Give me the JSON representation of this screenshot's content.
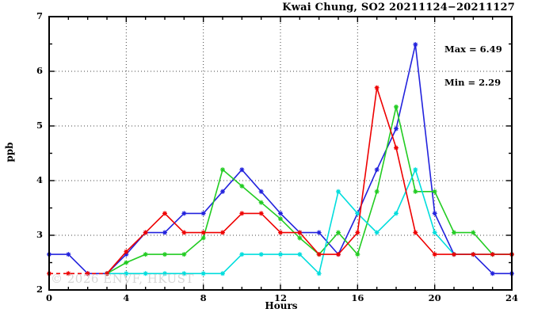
{
  "title": "Kwai Chung, SO2 20211124−20211127",
  "stats": {
    "max_label": "Max = 6.49",
    "min_label": "Min = 2.29"
  },
  "watermark": "© 2026 ENVF, HKUST",
  "chart_data": {
    "type": "line",
    "title": "Kwai Chung, SO2 20211124−20211127",
    "xlabel": "Hours",
    "ylabel": "ppb",
    "xlim": [
      0,
      24
    ],
    "ylim": [
      2,
      7
    ],
    "x_major_ticks": [
      0,
      4,
      8,
      12,
      16,
      20,
      24
    ],
    "x_minor_step": 1,
    "y_major_ticks": [
      2,
      3,
      4,
      5,
      6,
      7
    ],
    "y_minor_step": 0.5,
    "grid_x": [
      4,
      8,
      12,
      16,
      20
    ],
    "grid_y": [
      3,
      4,
      5,
      6
    ],
    "grid_on": true,
    "legend": "none",
    "max_value": 6.49,
    "min_value": 2.29,
    "marker": "asterisk",
    "series": [
      {
        "name": "day-blue",
        "color": "#2222dd",
        "x": [
          0,
          1,
          2,
          3,
          4,
          5,
          6,
          7,
          8,
          9,
          10,
          11,
          12,
          13,
          14,
          15,
          16,
          17,
          18,
          19,
          20,
          21,
          22,
          23,
          24
        ],
        "y": [
          2.65,
          2.65,
          2.3,
          2.3,
          2.65,
          3.05,
          3.05,
          3.4,
          3.4,
          3.8,
          4.2,
          3.8,
          3.4,
          3.05,
          3.05,
          2.65,
          3.4,
          4.2,
          4.95,
          6.49,
          3.4,
          2.65,
          2.65,
          2.3,
          2.3
        ]
      },
      {
        "name": "day-green",
        "color": "#22cc22",
        "x": [
          3,
          4,
          5,
          6,
          7,
          8,
          9,
          10,
          11,
          12,
          13,
          14,
          15,
          16,
          17,
          18,
          19,
          20,
          21,
          22,
          23,
          24
        ],
        "y": [
          2.3,
          2.5,
          2.65,
          2.65,
          2.65,
          2.95,
          4.2,
          3.9,
          3.6,
          3.3,
          2.95,
          2.65,
          3.05,
          2.65,
          3.8,
          5.35,
          3.8,
          3.8,
          3.05,
          3.05,
          2.65,
          2.65
        ]
      },
      {
        "name": "day-cyan",
        "color": "#00dddd",
        "x": [
          3,
          4,
          5,
          6,
          7,
          8,
          9,
          10,
          11,
          12,
          13,
          14,
          15,
          16,
          17,
          18,
          19,
          20,
          21,
          22,
          23,
          24
        ],
        "y": [
          2.3,
          2.3,
          2.3,
          2.3,
          2.3,
          2.3,
          2.3,
          2.65,
          2.65,
          2.65,
          2.65,
          2.3,
          3.8,
          3.4,
          3.05,
          3.4,
          4.2,
          3.05,
          2.65,
          2.65,
          2.65,
          2.65
        ]
      },
      {
        "name": "day-red",
        "color": "#ee0000",
        "dash_until_x": 3,
        "x": [
          0,
          1,
          2,
          3,
          4,
          5,
          6,
          7,
          8,
          9,
          10,
          11,
          12,
          13,
          14,
          15,
          16,
          17,
          18,
          19,
          20,
          21,
          22,
          23,
          24
        ],
        "y": [
          2.3,
          2.3,
          2.3,
          2.3,
          2.7,
          3.05,
          3.4,
          3.05,
          3.05,
          3.05,
          3.4,
          3.4,
          3.05,
          3.05,
          2.65,
          2.65,
          3.05,
          5.7,
          4.6,
          3.05,
          2.65,
          2.65,
          2.65,
          2.65,
          2.65
        ]
      }
    ]
  },
  "layout_colors": {
    "border": "#000000",
    "grid": "#444444",
    "watermark": "#c9c9c9"
  }
}
